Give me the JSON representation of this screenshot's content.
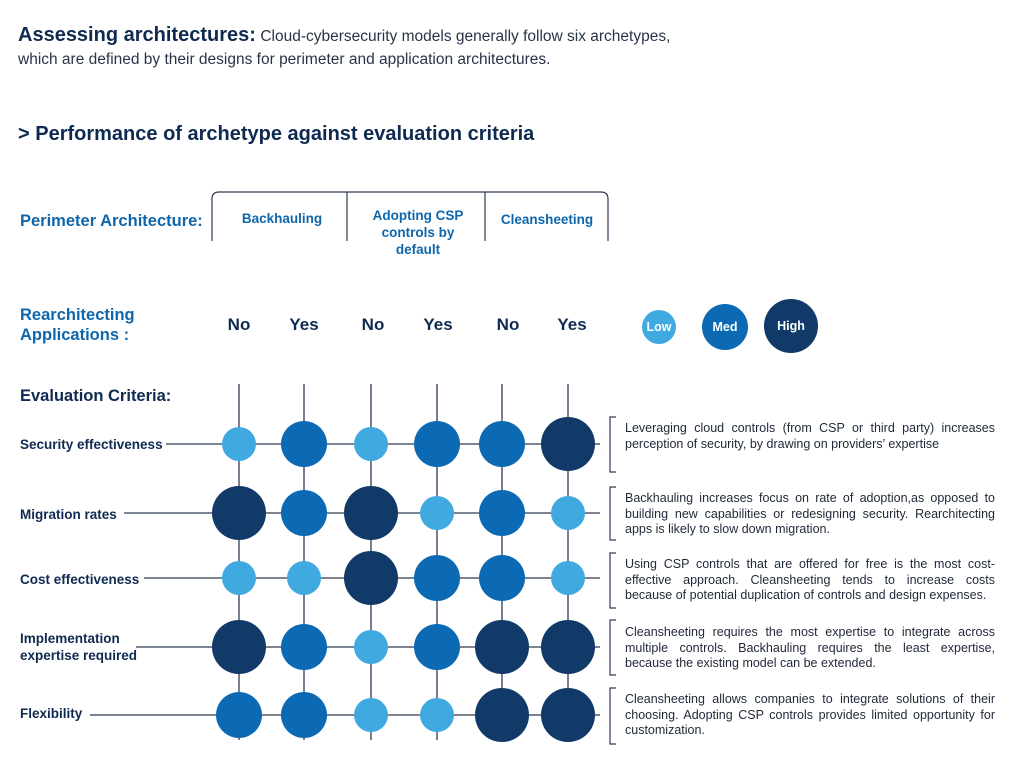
{
  "header": {
    "lead": "Assessing architectures:",
    "desc_line1": "Cloud-cybersecurity models generally follow six archetypes,",
    "desc_line2": "which are defined by their designs for perimeter and application architectures."
  },
  "section_title": "> Performance of archetype against evaluation criteria",
  "perimeter": {
    "heading": "Perimeter Architecture:",
    "options": [
      "Backhauling",
      "Adopting CSP controls by default",
      "Cleansheeting"
    ]
  },
  "rearchitecting": {
    "heading_line1": "Rearchitecting",
    "heading_line2": "Applications :",
    "values": [
      "No",
      "Yes",
      "No",
      "Yes",
      "No",
      "Yes"
    ]
  },
  "legend": {
    "low": "Low",
    "med": "Med",
    "high": "High"
  },
  "colors": {
    "low": "#3fa9e0",
    "med": "#0b6ab3",
    "high": "#123a68",
    "line": "#2e3a55",
    "accent": "#0e67ad"
  },
  "evaluation_heading": "Evaluation Criteria:",
  "criteria": [
    {
      "label_line1": "Security effectiveness",
      "label_line2": "",
      "levels": [
        "low",
        "med",
        "low",
        "med",
        "med",
        "high"
      ],
      "note": "Leveraging cloud controls (from CSP or third party) increases perception of security, by drawing on providers’ expertise"
    },
    {
      "label_line1": "Migration rates",
      "label_line2": "",
      "levels": [
        "high",
        "med",
        "high",
        "low",
        "med",
        "low"
      ],
      "note": "Backhauling increases focus on rate of adoption,as opposed to building new capabilities or redesigning security. Rearchitecting apps is likely to slow down migration."
    },
    {
      "label_line1": "Cost effectiveness",
      "label_line2": "",
      "levels": [
        "low",
        "low",
        "high",
        "med",
        "med",
        "low"
      ],
      "note": "Using CSP controls that are offered for free is the most cost-effective approach. Cleansheeting tends to increase costs because of potential duplication of controls and design expenses."
    },
    {
      "label_line1": "Implementation",
      "label_line2": "expertise required",
      "levels": [
        "high",
        "med",
        "low",
        "med",
        "high",
        "high"
      ],
      "note": "Cleansheeting requires the most expertise to integrate across multiple controls. Backhauling requires the least expertise, because the existing model can be extended."
    },
    {
      "label_line1": "Flexibility",
      "label_line2": "",
      "levels": [
        "med",
        "med",
        "low",
        "low",
        "high",
        "high"
      ],
      "note": "Cleansheeting allows companies to integrate solutions of their choosing. Adopting CSP controls provides limited opportunity for customization."
    }
  ]
}
